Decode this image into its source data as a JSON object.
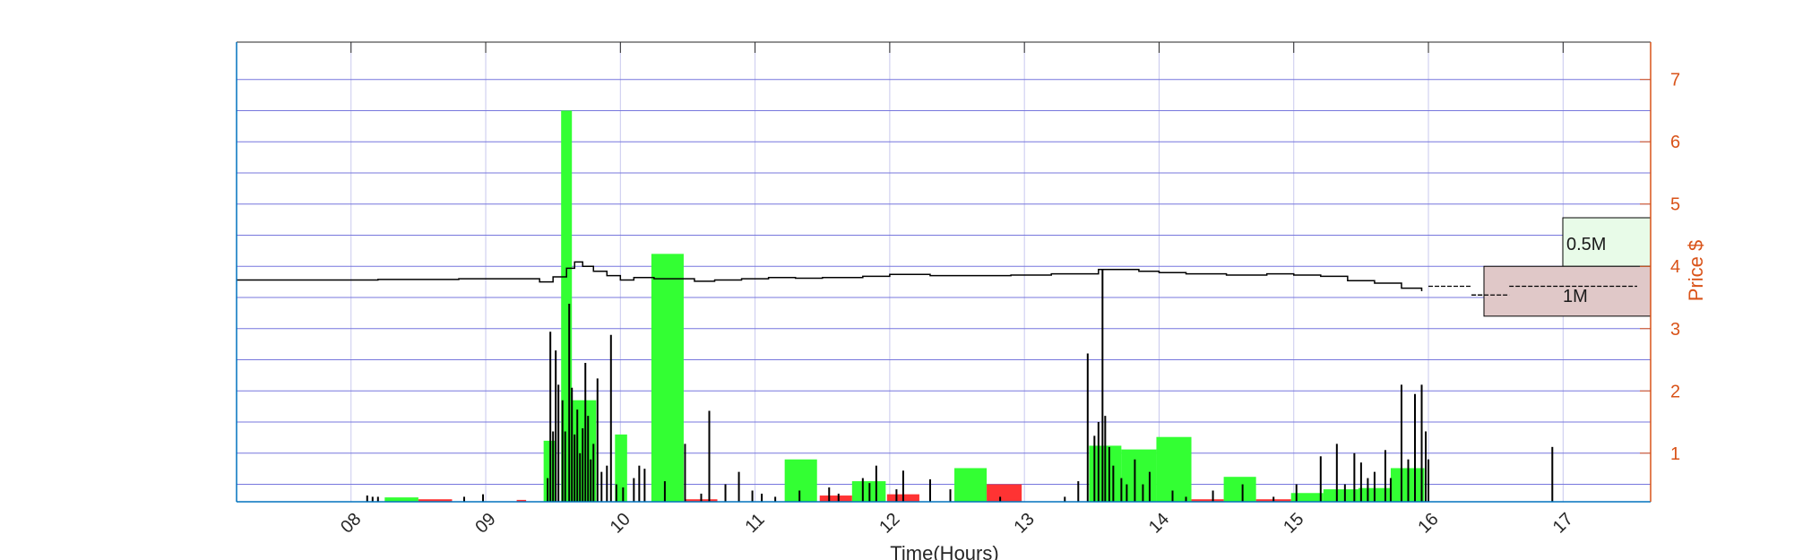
{
  "chart_data": {
    "type": "bar",
    "title": "",
    "xlabel": "Time(Hours)",
    "ylabel_right": "Price $",
    "xlim": [
      7.15,
      17.65
    ],
    "ylim": [
      0.22,
      7.6
    ],
    "x_ticks": [
      "08",
      "09",
      "10",
      "11",
      "12",
      "13",
      "14",
      "15",
      "16",
      "17"
    ],
    "x_tick_values": [
      8,
      9,
      10,
      11,
      12,
      13,
      14,
      15,
      16,
      17
    ],
    "y_ticks": [
      "1",
      "2",
      "3",
      "4",
      "5",
      "6",
      "7"
    ],
    "y_tick_values": [
      1,
      2,
      3,
      4,
      5,
      6,
      7
    ],
    "grid": true,
    "colors": {
      "buy_volume": "#33ff33",
      "sell_volume": "#ff3333",
      "trades": "#000000",
      "price_line": "#000000",
      "grid_h": "#7777dd",
      "grid_v": "#c8c8ee",
      "right_axis": "#d95319",
      "left_axis": "#0072bd",
      "legend_05m": "#e8fbe8",
      "legend_1m": "#e0c8c8"
    },
    "legend_boxes": [
      {
        "label": "0.5M",
        "y_low": 4.0,
        "y_high": 4.78
      },
      {
        "label": "1M",
        "y_low": 3.2,
        "y_high": 4.0
      }
    ],
    "buy_volume_bars": [
      {
        "x0": 8.25,
        "x1": 8.5,
        "y": 0.29
      },
      {
        "x0": 9.43,
        "x1": 9.52,
        "y": 1.2
      },
      {
        "x0": 9.56,
        "x1": 9.64,
        "y": 6.5
      },
      {
        "x0": 9.64,
        "x1": 9.82,
        "y": 1.85
      },
      {
        "x0": 9.96,
        "x1": 10.05,
        "y": 1.3
      },
      {
        "x0": 10.23,
        "x1": 10.47,
        "y": 4.2
      },
      {
        "x0": 11.22,
        "x1": 11.46,
        "y": 0.9
      },
      {
        "x0": 11.72,
        "x1": 11.97,
        "y": 0.55
      },
      {
        "x0": 12.48,
        "x1": 12.72,
        "y": 0.76
      },
      {
        "x0": 13.48,
        "x1": 13.72,
        "y": 1.12
      },
      {
        "x0": 13.72,
        "x1": 13.98,
        "y": 1.06
      },
      {
        "x0": 13.98,
        "x1": 14.24,
        "y": 1.26
      },
      {
        "x0": 14.48,
        "x1": 14.72,
        "y": 0.62
      },
      {
        "x0": 14.98,
        "x1": 15.22,
        "y": 0.36
      },
      {
        "x0": 15.22,
        "x1": 15.48,
        "y": 0.42
      },
      {
        "x0": 15.48,
        "x1": 15.72,
        "y": 0.44
      },
      {
        "x0": 15.72,
        "x1": 15.97,
        "y": 0.76
      }
    ],
    "sell_volume_bars": [
      {
        "x0": 8.5,
        "x1": 8.75,
        "y": 0.26
      },
      {
        "x0": 9.23,
        "x1": 9.3,
        "y": 0.25
      },
      {
        "x0": 10.48,
        "x1": 10.72,
        "y": 0.26
      },
      {
        "x0": 11.48,
        "x1": 11.72,
        "y": 0.32
      },
      {
        "x0": 11.98,
        "x1": 12.22,
        "y": 0.34
      },
      {
        "x0": 12.72,
        "x1": 12.98,
        "y": 0.5
      },
      {
        "x0": 14.24,
        "x1": 14.48,
        "y": 0.26
      },
      {
        "x0": 14.72,
        "x1": 14.98,
        "y": 0.26
      }
    ],
    "trade_spikes": [
      [
        8.12,
        0.32
      ],
      [
        8.16,
        0.3
      ],
      [
        8.2,
        0.3
      ],
      [
        8.84,
        0.3
      ],
      [
        8.98,
        0.34
      ],
      [
        9.46,
        0.6
      ],
      [
        9.48,
        2.95
      ],
      [
        9.5,
        1.35
      ],
      [
        9.52,
        2.65
      ],
      [
        9.54,
        2.1
      ],
      [
        9.57,
        1.85
      ],
      [
        9.59,
        1.35
      ],
      [
        9.62,
        3.4
      ],
      [
        9.64,
        2.05
      ],
      [
        9.66,
        1.3
      ],
      [
        9.68,
        1.7
      ],
      [
        9.7,
        1.0
      ],
      [
        9.72,
        1.4
      ],
      [
        9.74,
        2.45
      ],
      [
        9.76,
        1.6
      ],
      [
        9.78,
        0.9
      ],
      [
        9.8,
        1.15
      ],
      [
        9.83,
        2.2
      ],
      [
        9.86,
        0.7
      ],
      [
        9.9,
        0.8
      ],
      [
        9.93,
        2.9
      ],
      [
        9.97,
        0.5
      ],
      [
        10.02,
        0.45
      ],
      [
        10.1,
        0.6
      ],
      [
        10.14,
        0.8
      ],
      [
        10.18,
        0.75
      ],
      [
        10.33,
        0.55
      ],
      [
        10.48,
        1.15
      ],
      [
        10.6,
        0.35
      ],
      [
        10.66,
        1.68
      ],
      [
        10.78,
        0.5
      ],
      [
        10.88,
        0.7
      ],
      [
        10.98,
        0.4
      ],
      [
        11.05,
        0.35
      ],
      [
        11.15,
        0.3
      ],
      [
        11.33,
        0.4
      ],
      [
        11.55,
        0.45
      ],
      [
        11.62,
        0.35
      ],
      [
        11.8,
        0.6
      ],
      [
        11.85,
        0.52
      ],
      [
        11.9,
        0.8
      ],
      [
        12.05,
        0.42
      ],
      [
        12.1,
        0.72
      ],
      [
        12.3,
        0.58
      ],
      [
        12.45,
        0.42
      ],
      [
        12.82,
        0.3
      ],
      [
        13.3,
        0.3
      ],
      [
        13.4,
        0.55
      ],
      [
        13.47,
        2.6
      ],
      [
        13.52,
        1.28
      ],
      [
        13.55,
        1.5
      ],
      [
        13.58,
        3.95
      ],
      [
        13.6,
        1.6
      ],
      [
        13.63,
        1.1
      ],
      [
        13.66,
        0.8
      ],
      [
        13.72,
        0.6
      ],
      [
        13.76,
        0.5
      ],
      [
        13.82,
        0.9
      ],
      [
        13.88,
        0.5
      ],
      [
        13.93,
        0.7
      ],
      [
        14.1,
        0.4
      ],
      [
        14.2,
        0.3
      ],
      [
        14.4,
        0.4
      ],
      [
        14.62,
        0.5
      ],
      [
        14.85,
        0.3
      ],
      [
        15.02,
        0.5
      ],
      [
        15.2,
        0.95
      ],
      [
        15.32,
        1.15
      ],
      [
        15.38,
        0.5
      ],
      [
        15.45,
        1.0
      ],
      [
        15.5,
        0.85
      ],
      [
        15.55,
        0.6
      ],
      [
        15.6,
        0.7
      ],
      [
        15.68,
        1.05
      ],
      [
        15.72,
        0.6
      ],
      [
        15.8,
        2.1
      ],
      [
        15.85,
        0.9
      ],
      [
        15.9,
        1.95
      ],
      [
        15.95,
        2.1
      ],
      [
        15.98,
        1.35
      ],
      [
        16.0,
        0.9
      ],
      [
        16.92,
        1.1
      ]
    ],
    "price_line": [
      [
        7.15,
        3.78
      ],
      [
        8.2,
        3.79
      ],
      [
        8.8,
        3.8
      ],
      [
        9.4,
        3.75
      ],
      [
        9.5,
        3.83
      ],
      [
        9.6,
        3.97
      ],
      [
        9.66,
        4.07
      ],
      [
        9.72,
        4.0
      ],
      [
        9.8,
        3.92
      ],
      [
        9.9,
        3.85
      ],
      [
        10.0,
        3.78
      ],
      [
        10.1,
        3.82
      ],
      [
        10.25,
        3.8
      ],
      [
        10.4,
        3.8
      ],
      [
        10.55,
        3.76
      ],
      [
        10.7,
        3.78
      ],
      [
        10.9,
        3.8
      ],
      [
        11.1,
        3.82
      ],
      [
        11.3,
        3.81
      ],
      [
        11.5,
        3.82
      ],
      [
        11.8,
        3.84
      ],
      [
        12.0,
        3.87
      ],
      [
        12.3,
        3.85
      ],
      [
        12.6,
        3.85
      ],
      [
        12.9,
        3.86
      ],
      [
        13.2,
        3.88
      ],
      [
        13.45,
        3.88
      ],
      [
        13.55,
        3.95
      ],
      [
        13.7,
        3.95
      ],
      [
        13.85,
        3.92
      ],
      [
        14.0,
        3.9
      ],
      [
        14.2,
        3.88
      ],
      [
        14.5,
        3.86
      ],
      [
        14.8,
        3.88
      ],
      [
        15.0,
        3.86
      ],
      [
        15.2,
        3.84
      ],
      [
        15.4,
        3.77
      ],
      [
        15.6,
        3.73
      ],
      [
        15.8,
        3.65
      ],
      [
        15.95,
        3.6
      ]
    ],
    "price_dashes": [
      [
        16.0,
        16.32,
        3.68
      ],
      [
        16.32,
        16.6,
        3.54
      ],
      [
        16.6,
        17.55,
        3.68
      ]
    ]
  }
}
